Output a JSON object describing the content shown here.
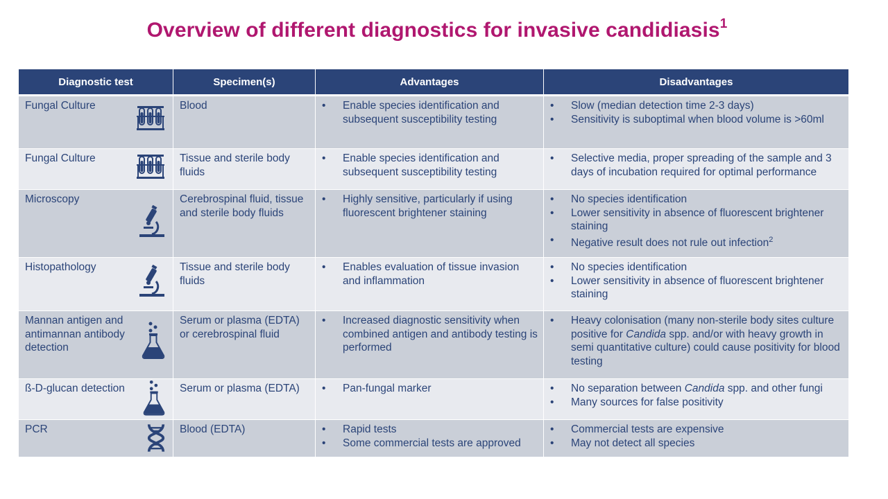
{
  "title": "Overview of different diagnostics for invasive candidiasis",
  "title_sup": "1",
  "colors": {
    "title": "#b0176f",
    "header_bg": "#2b4478",
    "row_dark": "#cacfd8",
    "row_light": "#e8eaef",
    "text": "#2b4478"
  },
  "headers": [
    "Diagnostic test",
    "Specimen(s)",
    "Advantages",
    "Disadvantages"
  ],
  "rows": [
    {
      "test": "Fungal Culture",
      "icon": "test-tubes-icon",
      "specimen": "Blood",
      "advantages": [
        "Enable species identification and subsequent susceptibility testing"
      ],
      "disadvantages": [
        "Slow (median detection time 2-3 days)",
        "Sensitivity is suboptimal when blood volume is >60ml"
      ]
    },
    {
      "test": "Fungal Culture",
      "icon": "test-tubes-icon",
      "specimen": "Tissue and sterile body fluids",
      "advantages": [
        "Enable species identification and subsequent susceptibility testing"
      ],
      "disadvantages": [
        "Selective media, proper spreading of the sample and 3 days of incubation required for optimal performance"
      ]
    },
    {
      "test": "Microscopy",
      "icon": "microscope-icon",
      "specimen": "Cerebrospinal fluid, tissue and sterile body fluids",
      "advantages": [
        "Highly sensitive, particularly if using fluorescent brightener staining"
      ],
      "disadvantages": [
        "No species identification",
        "Lower sensitivity in absence of fluorescent brightener staining",
        "Negative result does not rule out infection"
      ],
      "disadvantage_sup": "2"
    },
    {
      "test": "Histopathology",
      "icon": "microscope-icon",
      "specimen": "Tissue and sterile body fluids",
      "advantages": [
        "Enables evaluation of tissue invasion and inflammation"
      ],
      "disadvantages": [
        "No species identification",
        "Lower sensitivity in absence of fluorescent brightener staining"
      ]
    },
    {
      "test": "Mannan antigen and antimannan antibody detection",
      "icon": "flask-icon",
      "specimen": "Serum or plasma (EDTA) or cerebrospinal fluid",
      "advantages": [
        "Increased diagnostic sensitivity when combined antigen and antibody testing is performed"
      ],
      "disadvantages_rich": [
        "Heavy colonisation (many non-sterile body sites culture positive for ",
        "Candida",
        " spp. and/or with heavy growth in semi quantitative culture) could cause positivity for blood testing"
      ]
    },
    {
      "test": "ß-D-glucan detection",
      "icon": "flask-icon",
      "specimen": "Serum or plasma (EDTA)",
      "advantages": [
        "Pan-fungal marker"
      ],
      "disadvantages_rich": [
        "No separation between ",
        "Candida",
        " spp. and other fungi"
      ],
      "disadvantages": [
        "Many sources for false positivity"
      ]
    },
    {
      "test": "PCR",
      "icon": "dna-icon",
      "specimen": "Blood (EDTA)",
      "advantages": [
        "Rapid tests",
        "Some commercial tests are approved"
      ],
      "disadvantages": [
        "Commercial tests are expensive",
        "May not detect all species"
      ]
    }
  ]
}
